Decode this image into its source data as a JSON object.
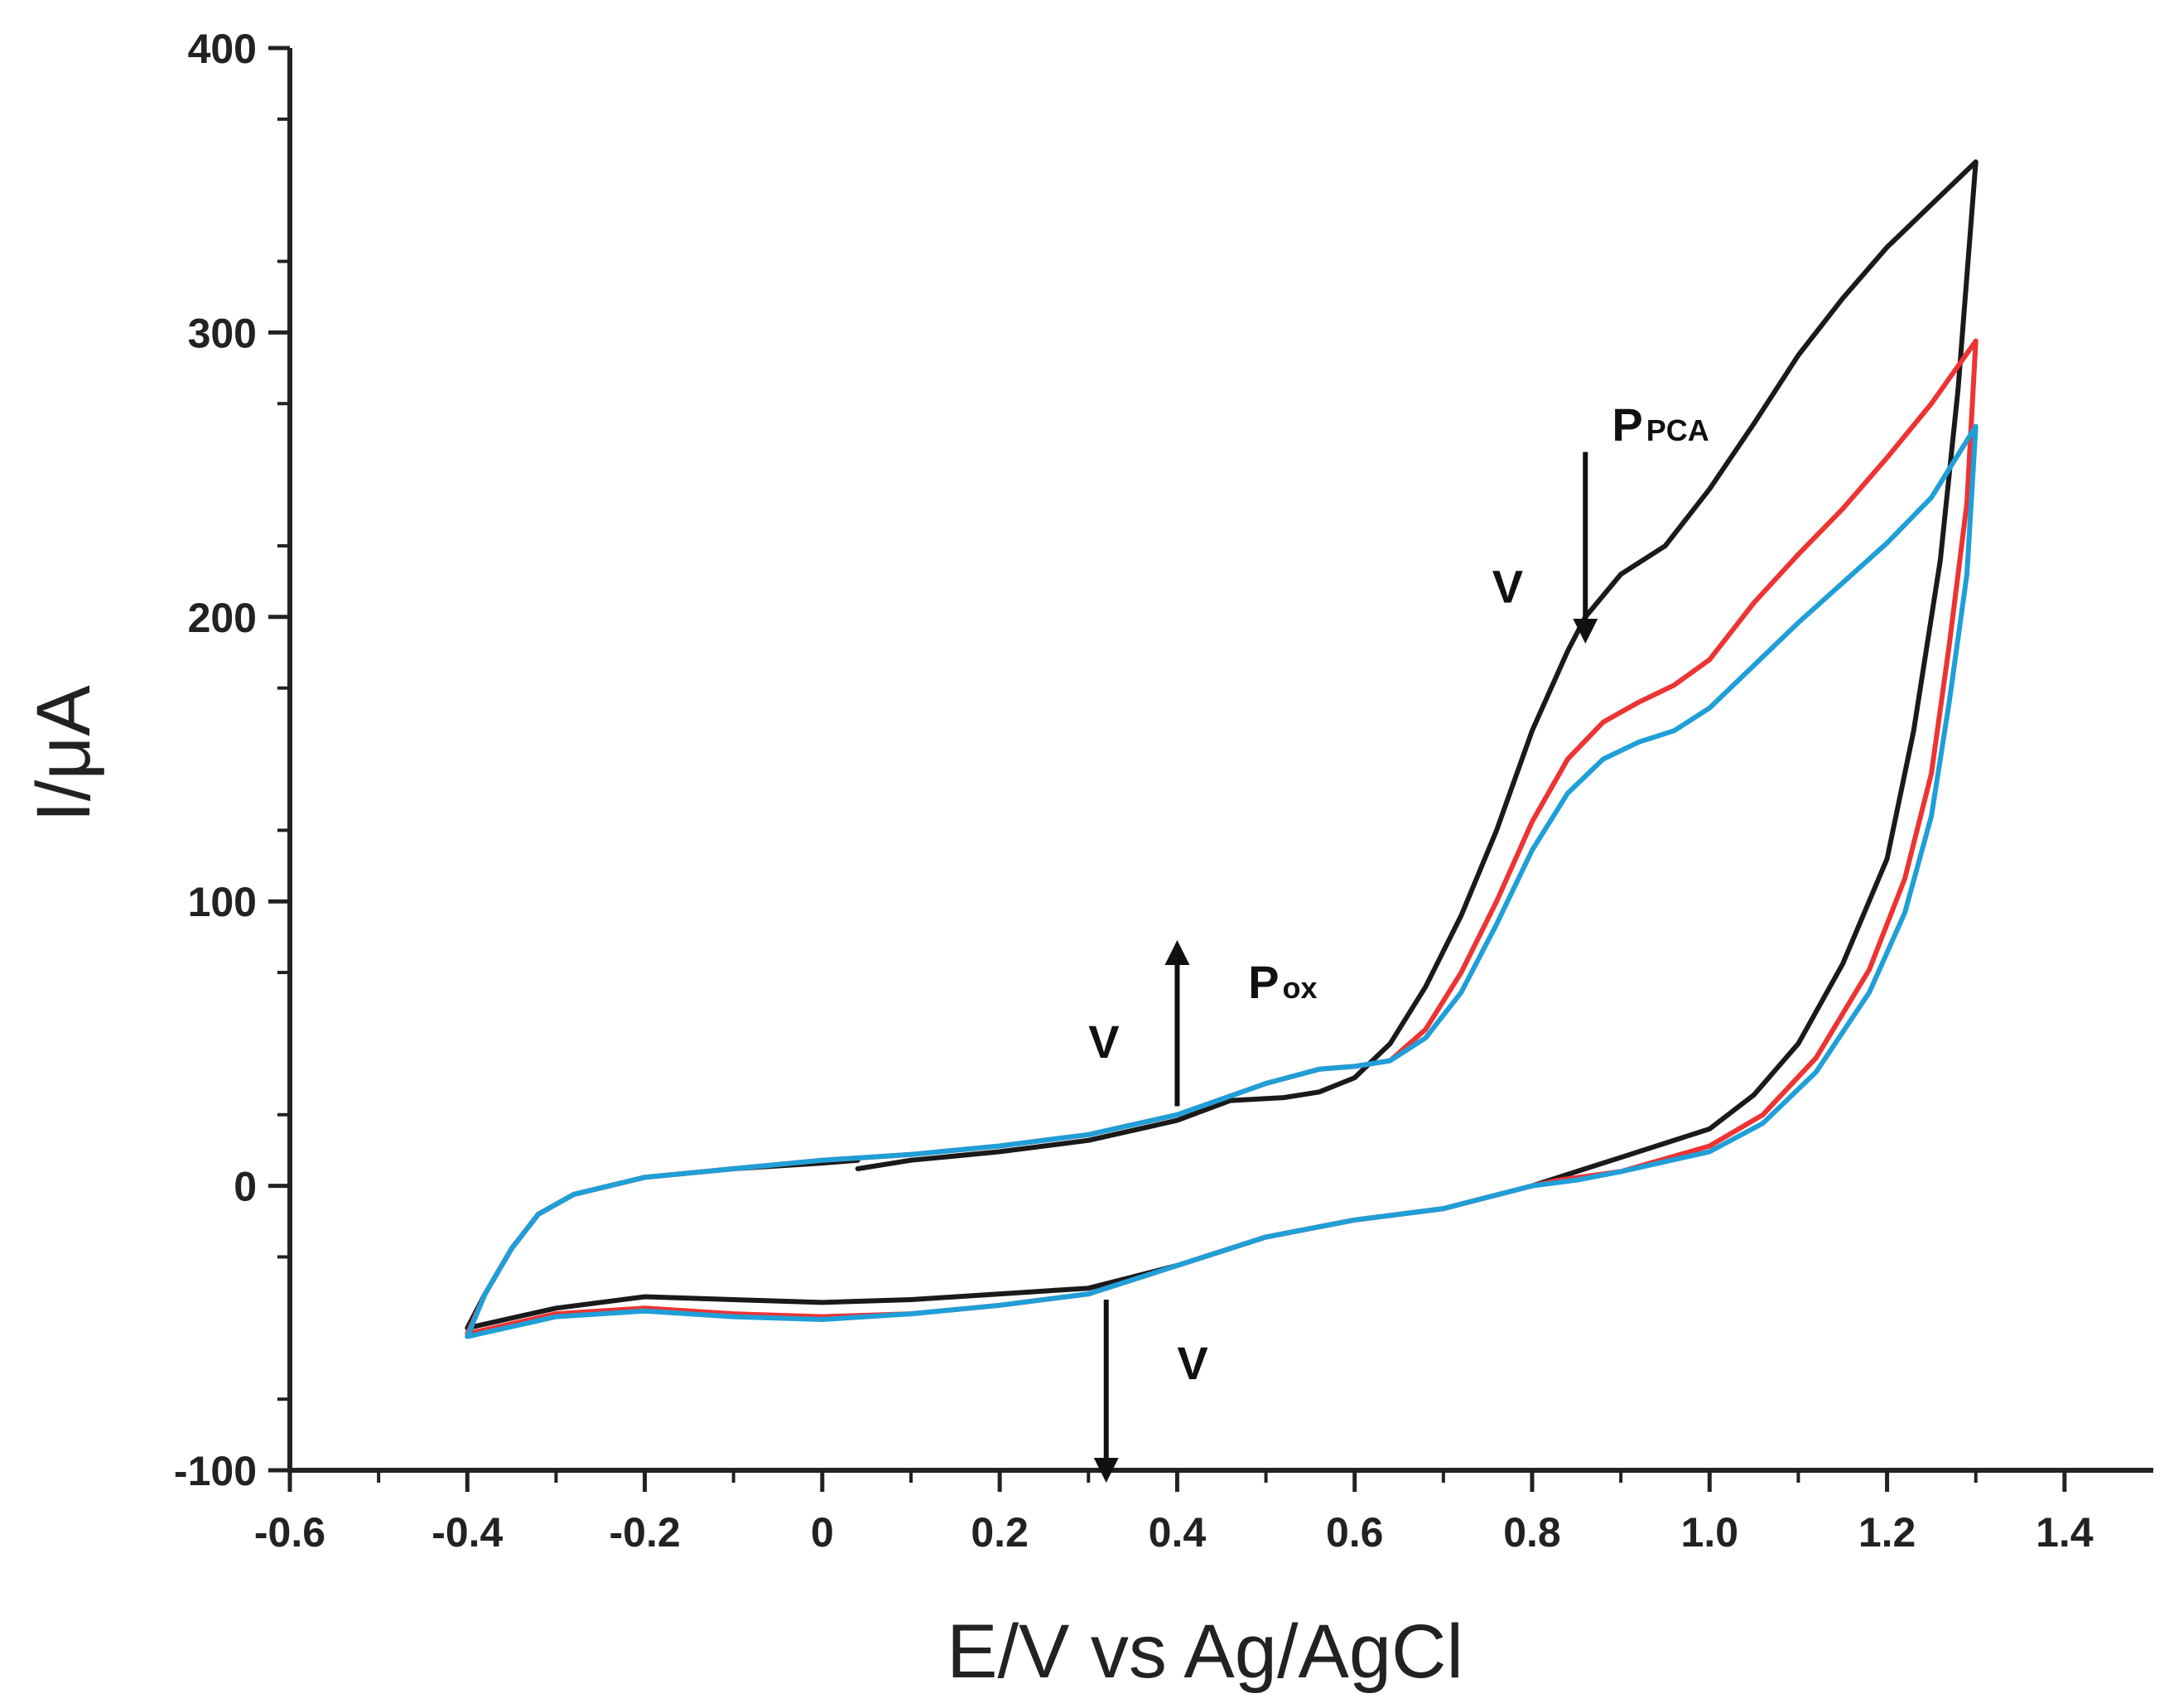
{
  "chart_data": {
    "type": "line",
    "title": "",
    "xlabel": "E/V vs Ag/AgCl",
    "ylabel": "I/μA",
    "xlim": [
      -0.6,
      1.5
    ],
    "ylim": [
      -100,
      400
    ],
    "xticks": [
      -0.6,
      -0.4,
      -0.2,
      0,
      0.2,
      0.4,
      0.6,
      0.8,
      1.0,
      1.2,
      1.4
    ],
    "xtick_labels": [
      "-0.6",
      "-0.4",
      "-0.2",
      "0",
      "0.2",
      "0.4",
      "0.6",
      "0.8",
      "1.0",
      "1.2",
      "1.4"
    ],
    "yticks": [
      -100,
      0,
      100,
      200,
      300,
      400
    ],
    "ytick_labels": [
      "-100",
      "0",
      "100",
      "200",
      "300",
      "400"
    ],
    "grid": false,
    "legend": "none",
    "series": [
      {
        "name": "curve-black",
        "color": "#1a1a1a",
        "points": [
          [
            0.04,
            6
          ],
          [
            0.1,
            9
          ],
          [
            0.2,
            12
          ],
          [
            0.3,
            16
          ],
          [
            0.4,
            23
          ],
          [
            0.46,
            30
          ],
          [
            0.52,
            31
          ],
          [
            0.56,
            33
          ],
          [
            0.6,
            38
          ],
          [
            0.64,
            50
          ],
          [
            0.68,
            70
          ],
          [
            0.72,
            95
          ],
          [
            0.76,
            125
          ],
          [
            0.8,
            160
          ],
          [
            0.84,
            188
          ],
          [
            0.86,
            200
          ],
          [
            0.9,
            215
          ],
          [
            0.95,
            225
          ],
          [
            1.0,
            245
          ],
          [
            1.05,
            268
          ],
          [
            1.1,
            292
          ],
          [
            1.15,
            312
          ],
          [
            1.2,
            330
          ],
          [
            1.25,
            345
          ],
          [
            1.3,
            360
          ],
          [
            1.28,
            280
          ],
          [
            1.26,
            220
          ],
          [
            1.23,
            160
          ],
          [
            1.2,
            115
          ],
          [
            1.15,
            78
          ],
          [
            1.1,
            50
          ],
          [
            1.05,
            32
          ],
          [
            1.0,
            20
          ],
          [
            0.9,
            10
          ],
          [
            0.85,
            5
          ],
          [
            0.8,
            0
          ],
          [
            0.7,
            -8
          ],
          [
            0.6,
            -12
          ],
          [
            0.5,
            -18
          ],
          [
            0.4,
            -28
          ],
          [
            0.3,
            -36
          ],
          [
            0.2,
            -38
          ],
          [
            0.1,
            -40
          ],
          [
            0.0,
            -41
          ],
          [
            -0.1,
            -40
          ],
          [
            -0.2,
            -39
          ],
          [
            -0.3,
            -43
          ],
          [
            -0.4,
            -50
          ],
          [
            -0.38,
            -38
          ],
          [
            -0.35,
            -22
          ],
          [
            -0.32,
            -10
          ],
          [
            -0.28,
            -3
          ],
          [
            -0.2,
            3
          ],
          [
            -0.1,
            6
          ],
          [
            0.0,
            8
          ],
          [
            0.04,
            9
          ]
        ]
      },
      {
        "name": "curve-red",
        "color": "#ee3333",
        "points": [
          [
            0.0,
            9
          ],
          [
            0.1,
            11
          ],
          [
            0.2,
            14
          ],
          [
            0.3,
            18
          ],
          [
            0.4,
            25
          ],
          [
            0.5,
            36
          ],
          [
            0.56,
            41
          ],
          [
            0.6,
            42
          ],
          [
            0.64,
            44
          ],
          [
            0.68,
            55
          ],
          [
            0.72,
            75
          ],
          [
            0.76,
            100
          ],
          [
            0.8,
            128
          ],
          [
            0.84,
            150
          ],
          [
            0.88,
            163
          ],
          [
            0.92,
            170
          ],
          [
            0.96,
            176
          ],
          [
            1.0,
            185
          ],
          [
            1.05,
            205
          ],
          [
            1.1,
            222
          ],
          [
            1.15,
            238
          ],
          [
            1.2,
            256
          ],
          [
            1.25,
            275
          ],
          [
            1.3,
            297
          ],
          [
            1.29,
            240
          ],
          [
            1.27,
            190
          ],
          [
            1.25,
            145
          ],
          [
            1.22,
            108
          ],
          [
            1.18,
            76
          ],
          [
            1.12,
            45
          ],
          [
            1.06,
            25
          ],
          [
            1.0,
            14
          ],
          [
            0.9,
            5
          ],
          [
            0.83,
            2
          ],
          [
            0.8,
            0
          ],
          [
            0.7,
            -8
          ],
          [
            0.6,
            -12
          ],
          [
            0.5,
            -18
          ],
          [
            0.4,
            -28
          ],
          [
            0.3,
            -38
          ],
          [
            0.2,
            -42
          ],
          [
            0.1,
            -45
          ],
          [
            0.0,
            -46
          ],
          [
            -0.1,
            -45
          ],
          [
            -0.2,
            -43
          ],
          [
            -0.3,
            -45
          ],
          [
            -0.4,
            -52
          ],
          [
            -0.38,
            -38
          ],
          [
            -0.35,
            -22
          ],
          [
            -0.32,
            -10
          ],
          [
            -0.28,
            -3
          ],
          [
            -0.2,
            3
          ],
          [
            -0.1,
            6
          ],
          [
            0.0,
            9
          ]
        ]
      },
      {
        "name": "curve-blue",
        "color": "#1f9fd8",
        "points": [
          [
            0.0,
            9
          ],
          [
            0.1,
            11
          ],
          [
            0.2,
            14
          ],
          [
            0.3,
            18
          ],
          [
            0.4,
            25
          ],
          [
            0.5,
            36
          ],
          [
            0.56,
            41
          ],
          [
            0.6,
            42
          ],
          [
            0.64,
            44
          ],
          [
            0.68,
            52
          ],
          [
            0.72,
            68
          ],
          [
            0.76,
            92
          ],
          [
            0.8,
            118
          ],
          [
            0.84,
            138
          ],
          [
            0.88,
            150
          ],
          [
            0.92,
            156
          ],
          [
            0.96,
            160
          ],
          [
            1.0,
            168
          ],
          [
            1.05,
            183
          ],
          [
            1.1,
            198
          ],
          [
            1.15,
            212
          ],
          [
            1.2,
            226
          ],
          [
            1.25,
            242
          ],
          [
            1.3,
            267
          ],
          [
            1.29,
            215
          ],
          [
            1.27,
            170
          ],
          [
            1.25,
            130
          ],
          [
            1.22,
            96
          ],
          [
            1.18,
            68
          ],
          [
            1.12,
            40
          ],
          [
            1.06,
            22
          ],
          [
            1.0,
            12
          ],
          [
            0.9,
            5
          ],
          [
            0.85,
            2
          ],
          [
            0.8,
            0
          ],
          [
            0.7,
            -8
          ],
          [
            0.6,
            -12
          ],
          [
            0.5,
            -18
          ],
          [
            0.4,
            -28
          ],
          [
            0.3,
            -38
          ],
          [
            0.2,
            -42
          ],
          [
            0.1,
            -45
          ],
          [
            0.0,
            -47
          ],
          [
            -0.1,
            -46
          ],
          [
            -0.2,
            -44
          ],
          [
            -0.3,
            -46
          ],
          [
            -0.4,
            -53
          ],
          [
            -0.38,
            -38
          ],
          [
            -0.35,
            -22
          ],
          [
            -0.32,
            -10
          ],
          [
            -0.28,
            -3
          ],
          [
            -0.2,
            3
          ],
          [
            -0.1,
            6
          ],
          [
            0.0,
            9
          ]
        ]
      }
    ],
    "annotations": [
      {
        "label": "P",
        "sub": "PCA",
        "at": [
          0.89,
          262
        ]
      },
      {
        "label": "P",
        "sub": "ox",
        "at": [
          0.48,
          66
        ]
      },
      {
        "label": "V",
        "at": [
          0.755,
          205
        ]
      },
      {
        "label": "V",
        "at": [
          0.3,
          45
        ]
      },
      {
        "label": "V",
        "at": [
          0.4,
          -68
        ]
      }
    ],
    "arrows": [
      {
        "direction": "down",
        "from": [
          0.86,
          258
        ],
        "to": [
          0.86,
          195
        ]
      },
      {
        "direction": "up",
        "from": [
          0.4,
          28
        ],
        "to": [
          0.4,
          82
        ]
      },
      {
        "direction": "down",
        "from": [
          0.32,
          -40
        ],
        "to": [
          0.32,
          -100
        ]
      }
    ]
  }
}
